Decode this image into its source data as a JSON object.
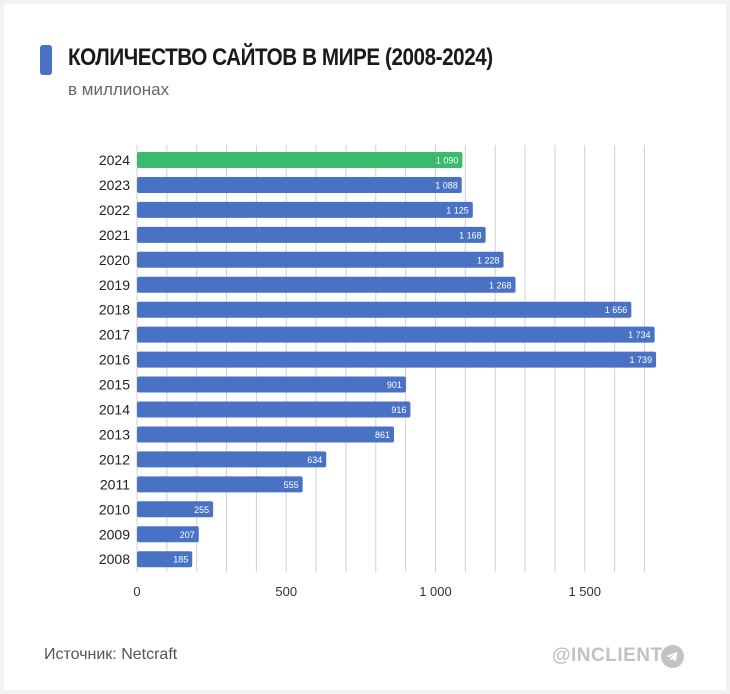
{
  "title": "КОЛИЧЕСТВО САЙТОВ В МИРЕ (2008-2024)",
  "subtitle": "в миллионах",
  "source": "Источник: Netcraft",
  "brand": "@INCLIENT",
  "brand_icon": "telegram-icon",
  "colors": {
    "bar": "#4a72c4",
    "highlight": "#3cba6c",
    "accent": "#4a72c4",
    "grid": "#d0d0d0"
  },
  "chart_data": {
    "type": "bar",
    "orientation": "horizontal",
    "categories": [
      "2024",
      "2023",
      "2022",
      "2021",
      "2020",
      "2019",
      "2018",
      "2017",
      "2016",
      "2015",
      "2014",
      "2013",
      "2012",
      "2011",
      "2010",
      "2009",
      "2008"
    ],
    "values": [
      1090,
      1088,
      1125,
      1168,
      1228,
      1268,
      1656,
      1734,
      1739,
      901,
      916,
      861,
      634,
      555,
      255,
      207,
      185
    ],
    "value_labels": [
      "1 090",
      "1 088",
      "1 125",
      "1 168",
      "1 228",
      "1 268",
      "1 656",
      "1 734",
      "1 739",
      "901",
      "916",
      "861",
      "634",
      "555",
      "255",
      "207",
      "185"
    ],
    "highlight_category": "2024",
    "xlim": [
      0,
      1750
    ],
    "xticks": [
      0,
      500,
      1000,
      1500
    ],
    "xtick_labels": [
      "0",
      "500",
      "1 000",
      "1 500"
    ],
    "grid": true,
    "legend": "none"
  }
}
